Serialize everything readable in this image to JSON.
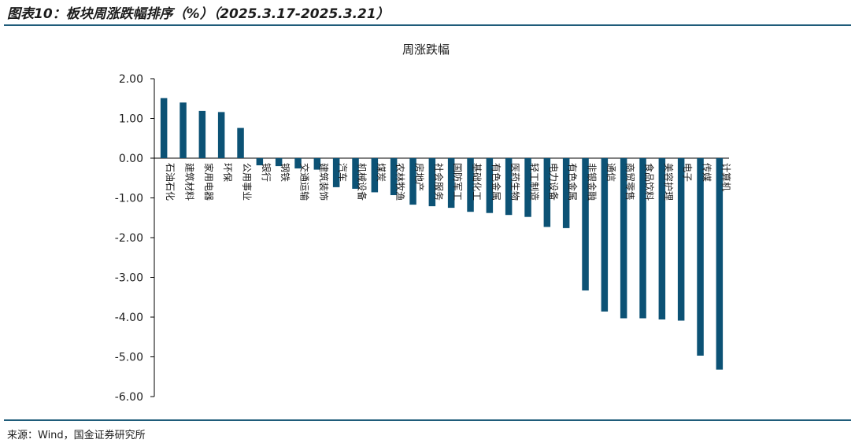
{
  "header": {
    "title": "图表10：板块周涨跌幅排序（%）（2025.3.17-2025.3.21）"
  },
  "footer": {
    "source": "来源：Wind，国金证券研究所"
  },
  "colors": {
    "bar": "#0c5275",
    "rule": "#1f5c7a",
    "axis": "#000000"
  },
  "chart_data": {
    "type": "bar",
    "title": "周涨跌幅",
    "xlabel": "",
    "ylabel": "",
    "ylim": [
      -6,
      2
    ],
    "yticks": [
      "2.00",
      "1.00",
      "0.00",
      "-1.00",
      "-2.00",
      "-3.00",
      "-4.00",
      "-5.00",
      "-6.00"
    ],
    "grid": false,
    "legend": "none",
    "categories": [
      "石油石化",
      "建筑材料",
      "家用电器",
      "环保",
      "公用事业",
      "银行",
      "钢铁",
      "交通运输",
      "建筑装饰",
      "汽车",
      "机械设备",
      "煤炭",
      "农林牧渔",
      "房地产",
      "社会服务",
      "国防军工",
      "基础化工",
      "有色金属",
      "医药生物",
      "轻工制造",
      "电力设备",
      "有色金属",
      "非银金融",
      "通信",
      "商贸零售",
      "食品饮料",
      "美容护理",
      "电子",
      "传媒",
      "计算机"
    ],
    "values": [
      1.51,
      1.4,
      1.19,
      1.16,
      0.76,
      -0.18,
      -0.2,
      -0.26,
      -0.29,
      -0.73,
      -0.77,
      -0.86,
      -0.93,
      -1.17,
      -1.21,
      -1.25,
      -1.35,
      -1.38,
      -1.43,
      -1.48,
      -1.73,
      -1.76,
      -3.33,
      -3.86,
      -4.03,
      -4.03,
      -4.06,
      -4.09,
      -4.97,
      -5.32
    ]
  }
}
